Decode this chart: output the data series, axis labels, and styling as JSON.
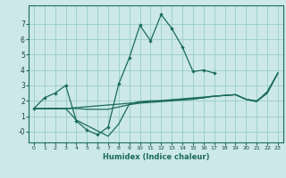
{
  "title": "",
  "xlabel": "Humidex (Indice chaleur)",
  "bg_color": "#cce8e8",
  "grid_color": "#99cccc",
  "line_color": "#1a6b5a",
  "xlim": [
    -0.5,
    23.5
  ],
  "ylim": [
    -0.7,
    8.2
  ],
  "yticks": [
    0,
    1,
    2,
    3,
    4,
    5,
    6,
    7
  ],
  "ytick_labels": [
    "-0",
    "1",
    "2",
    "3",
    "4",
    "5",
    "6",
    "7"
  ],
  "xticks": [
    0,
    1,
    2,
    3,
    4,
    5,
    6,
    7,
    8,
    9,
    10,
    11,
    12,
    13,
    14,
    15,
    16,
    17,
    18,
    19,
    20,
    21,
    22,
    23
  ],
  "line_main_x": [
    0,
    1,
    2,
    3,
    4,
    5,
    6,
    7,
    8,
    9,
    10,
    11,
    12,
    13,
    14,
    15,
    16,
    17
  ],
  "line_main_y": [
    1.5,
    2.2,
    2.5,
    3.0,
    0.7,
    0.1,
    -0.2,
    0.3,
    3.1,
    4.8,
    6.9,
    5.9,
    7.6,
    6.7,
    5.5,
    3.9,
    4.0,
    3.8
  ],
  "line_trend1_x": [
    0,
    1,
    2,
    3,
    4,
    5,
    6,
    7,
    8,
    9,
    10,
    11,
    12,
    13,
    14,
    15,
    16,
    17,
    18,
    19,
    20,
    21,
    22,
    23
  ],
  "line_trend1_y": [
    1.5,
    1.5,
    1.5,
    1.5,
    1.5,
    1.45,
    1.45,
    1.45,
    1.6,
    1.75,
    1.85,
    1.9,
    1.95,
    2.0,
    2.05,
    2.1,
    2.2,
    2.3,
    2.35,
    2.4,
    2.1,
    2.0,
    2.5,
    3.8
  ],
  "line_trend2_x": [
    0,
    3,
    4,
    5,
    6,
    7,
    8,
    9,
    10,
    11,
    12,
    13,
    14,
    15,
    16,
    17,
    18,
    19,
    20,
    21,
    22,
    23
  ],
  "line_trend2_y": [
    1.5,
    1.5,
    0.75,
    0.4,
    0.05,
    -0.3,
    0.5,
    1.8,
    1.95,
    2.0,
    2.0,
    2.05,
    2.1,
    2.15,
    2.2,
    2.3,
    2.35,
    2.4,
    2.1,
    1.95,
    2.6,
    3.8
  ],
  "line_trend3_x": [
    0,
    3,
    17,
    19,
    20,
    21,
    22,
    23
  ],
  "line_trend3_y": [
    1.5,
    1.5,
    2.3,
    2.4,
    2.1,
    1.95,
    2.5,
    3.8
  ]
}
